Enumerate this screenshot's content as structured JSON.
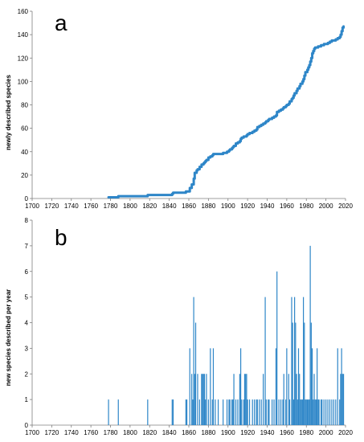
{
  "chart_data": [
    {
      "type": "line",
      "panel_label": "a",
      "title": "",
      "xlabel": "",
      "ylabel": "newly described species",
      "xlim": [
        1700,
        2020
      ],
      "ylim": [
        0,
        160
      ],
      "x_ticks": [
        "1700",
        "1720",
        "1740",
        "1760",
        "1780",
        "1800",
        "1820",
        "1840",
        "1860",
        "1880",
        "1900",
        "1920",
        "1940",
        "1960",
        "1980",
        "2000",
        "2020"
      ],
      "y_ticks": [
        "0",
        "20",
        "40",
        "60",
        "80",
        "100",
        "120",
        "140",
        "160"
      ],
      "grid": false,
      "color": "#2E86C8",
      "series": [
        {
          "x": [
            1778,
            1788,
            1818,
            1843,
            1844,
            1857,
            1861,
            1863,
            1865,
            1866,
            1868,
            1869,
            1871,
            1873,
            1874,
            1875,
            1876,
            1877,
            1878,
            1880,
            1882,
            1884,
            1885,
            1887,
            1890,
            1895,
            1899,
            1901,
            1902,
            1904,
            1905,
            1906,
            1908,
            1910,
            1912,
            1913,
            1914,
            1916,
            1917,
            1918,
            1919,
            1920,
            1922,
            1925,
            1927,
            1929,
            1930,
            1932,
            1934,
            1936,
            1938,
            1939,
            1941,
            1942,
            1945,
            1947,
            1949,
            1950,
            1952,
            1954,
            1956,
            1957,
            1959,
            1960,
            1962,
            1963,
            1965,
            1966,
            1967,
            1968,
            1970,
            1971,
            1973,
            1974,
            1976,
            1977,
            1978,
            1979,
            1981,
            1982,
            1983,
            1984,
            1985,
            1986,
            1987,
            1988,
            1989,
            1991,
            1992,
            1993,
            1995,
            1996,
            1998,
            2000,
            2002,
            2004,
            2006,
            2008,
            2010,
            2012,
            2014,
            2015,
            2016,
            2017,
            2018
          ],
          "y": [
            1,
            2,
            3,
            4,
            5,
            6,
            9,
            12,
            17,
            22,
            24,
            25,
            27,
            29,
            29,
            30,
            31,
            32,
            33,
            35,
            36,
            37,
            38,
            38,
            38,
            39,
            40,
            41,
            42,
            43,
            44,
            45,
            47,
            48,
            49,
            51,
            52,
            53,
            53,
            53,
            54,
            55,
            56,
            57,
            58,
            59,
            61,
            62,
            63,
            64,
            65,
            66,
            67,
            68,
            69,
            70,
            71,
            74,
            75,
            76,
            77,
            78,
            79,
            80,
            81,
            83,
            85,
            86,
            88,
            90,
            92,
            94,
            96,
            98,
            100,
            102,
            105,
            108,
            110,
            112,
            114,
            117,
            120,
            124,
            126,
            128,
            129,
            129,
            130,
            130,
            131,
            131,
            132,
            132,
            133,
            134,
            135,
            135,
            136,
            137,
            138,
            140,
            143,
            146,
            147
          ]
        }
      ]
    },
    {
      "type": "bar",
      "panel_label": "b",
      "title": "",
      "xlabel": "",
      "ylabel": "new species described per year",
      "xlim": [
        1700,
        2020
      ],
      "ylim": [
        0,
        8
      ],
      "x_ticks": [
        "1700",
        "1720",
        "1740",
        "1760",
        "1780",
        "1800",
        "1820",
        "1840",
        "1860",
        "1880",
        "1900",
        "1920",
        "1940",
        "1960",
        "1980",
        "2000",
        "2020"
      ],
      "y_ticks": [
        "0",
        "1",
        "2",
        "3",
        "4",
        "5",
        "6",
        "7",
        "8"
      ],
      "grid": false,
      "color": "#2E86C8",
      "x": [
        1778,
        1788,
        1818,
        1843,
        1844,
        1857,
        1858,
        1861,
        1863,
        1864,
        1865,
        1866,
        1867,
        1869,
        1871,
        1873,
        1874,
        1875,
        1876,
        1877,
        1878,
        1880,
        1882,
        1884,
        1885,
        1887,
        1890,
        1895,
        1899,
        1901,
        1902,
        1904,
        1905,
        1906,
        1908,
        1910,
        1912,
        1913,
        1914,
        1916,
        1917,
        1918,
        1919,
        1920,
        1922,
        1925,
        1927,
        1929,
        1930,
        1932,
        1934,
        1936,
        1938,
        1939,
        1941,
        1942,
        1945,
        1947,
        1949,
        1950,
        1952,
        1954,
        1956,
        1957,
        1959,
        1960,
        1962,
        1963,
        1965,
        1966,
        1967,
        1968,
        1969,
        1970,
        1971,
        1972,
        1973,
        1974,
        1975,
        1976,
        1977,
        1978,
        1979,
        1980,
        1981,
        1982,
        1983,
        1984,
        1985,
        1986,
        1987,
        1988,
        1989,
        1990,
        1991,
        1992,
        1993,
        1995,
        1996,
        1998,
        2000,
        2002,
        2004,
        2006,
        2008,
        2010,
        2012,
        2014,
        2015,
        2016,
        2017,
        2018
      ],
      "values": [
        1,
        1,
        1,
        1,
        1,
        1,
        1,
        3,
        2,
        1,
        5,
        2,
        4,
        2,
        1,
        2,
        2,
        2,
        2,
        1,
        2,
        1,
        3,
        1,
        3,
        1,
        1,
        1,
        1,
        1,
        1,
        1,
        1,
        2,
        1,
        1,
        2,
        3,
        1,
        1,
        2,
        2,
        2,
        1,
        1,
        1,
        1,
        1,
        1,
        1,
        1,
        2,
        5,
        1,
        1,
        1,
        1,
        1,
        3,
        6,
        1,
        1,
        1,
        2,
        1,
        3,
        2,
        1,
        5,
        4,
        1,
        5,
        4,
        2,
        1,
        3,
        2,
        1,
        1,
        1,
        5,
        4,
        1,
        1,
        1,
        1,
        1,
        7,
        4,
        3,
        1,
        2,
        1,
        1,
        3,
        1,
        1,
        1,
        1,
        1,
        1,
        1,
        1,
        1,
        1,
        1,
        3,
        1,
        2,
        3,
        2,
        2
      ]
    }
  ]
}
